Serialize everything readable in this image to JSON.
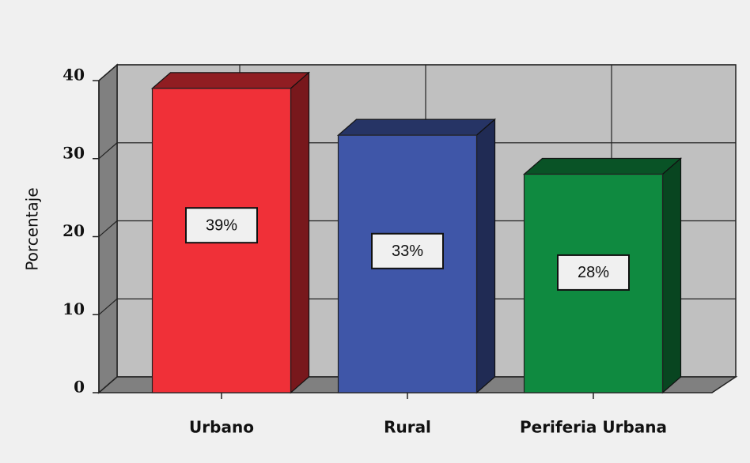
{
  "chart_data": {
    "type": "bar3d",
    "y_label": "Porcentaje",
    "categories": [
      "Urbano",
      "Rural",
      "Periferia Urbana"
    ],
    "values": [
      39,
      33,
      28
    ],
    "value_labels": [
      "39%",
      "33%",
      "28%"
    ],
    "colors": [
      "#f03038",
      "#3f56a8",
      "#0f8a40"
    ],
    "ylim": [
      0,
      40
    ],
    "yticks": [
      0,
      10,
      20,
      30,
      40
    ],
    "grid": true
  }
}
